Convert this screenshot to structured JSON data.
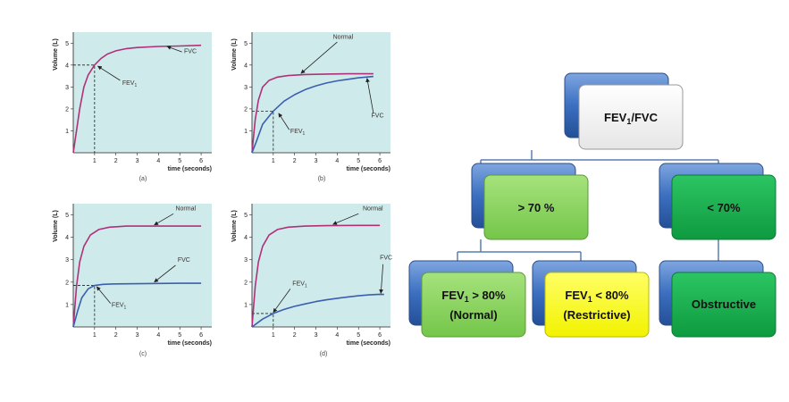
{
  "chart_data": [
    {
      "type": "line",
      "caption": "(a)",
      "ylabel": "Volume (L)",
      "xlabel": "time (seconds)",
      "xlim": [
        0,
        6.5
      ],
      "ylim": [
        0,
        5.5
      ],
      "xticks": [
        1,
        2,
        3,
        4,
        5,
        6
      ],
      "yticks": [
        1,
        2,
        3,
        4,
        5
      ],
      "series": [
        {
          "color": "#b0307a",
          "x": [
            0,
            0.15,
            0.3,
            0.5,
            0.7,
            1.0,
            1.3,
            1.6,
            2.0,
            2.5,
            3.0,
            4.0,
            5.0,
            6.0
          ],
          "y": [
            0,
            1.0,
            2.0,
            3.0,
            3.55,
            4.0,
            4.3,
            4.5,
            4.65,
            4.75,
            4.8,
            4.85,
            4.87,
            4.9
          ]
        }
      ],
      "annotations": [
        {
          "text": "FVC",
          "x": 5.2,
          "y": 4.55
        },
        {
          "text": "FEV",
          "sub": "1",
          "x": 2.3,
          "y": 3.1
        }
      ],
      "marker": {
        "x": 1.0,
        "y": 4.0
      }
    },
    {
      "type": "line",
      "caption": "(b)",
      "ylabel": "Volume (L)",
      "xlabel": "time (seconds)",
      "xlim": [
        0,
        6.5
      ],
      "ylim": [
        0,
        5.5
      ],
      "xticks": [
        1,
        2,
        3,
        4,
        5,
        6
      ],
      "yticks": [
        1,
        2,
        3,
        4,
        5
      ],
      "series": [
        {
          "color": "#b0307a",
          "x": [
            0,
            0.15,
            0.3,
            0.5,
            0.8,
            1.2,
            1.7,
            2.5,
            3.5,
            4.5,
            5.7
          ],
          "y": [
            0,
            1.5,
            2.4,
            3.0,
            3.3,
            3.45,
            3.52,
            3.57,
            3.59,
            3.6,
            3.6
          ]
        },
        {
          "color": "#3a5fb0",
          "x": [
            0,
            0.2,
            0.5,
            1.0,
            1.5,
            2.0,
            2.5,
            3.0,
            3.5,
            4.0,
            4.5,
            5.0,
            5.7
          ],
          "y": [
            0,
            0.5,
            1.3,
            1.9,
            2.35,
            2.65,
            2.88,
            3.05,
            3.18,
            3.28,
            3.35,
            3.42,
            3.48
          ]
        }
      ],
      "annotations": [
        {
          "text": "Normal",
          "x": 3.8,
          "y": 5.2
        },
        {
          "text": "FVC",
          "x": 5.6,
          "y": 1.6
        },
        {
          "text": "FEV",
          "sub": "1",
          "x": 1.8,
          "y": 0.9
        }
      ],
      "marker": {
        "x": 1.0,
        "y": 1.9
      }
    },
    {
      "type": "line",
      "caption": "(c)",
      "ylabel": "Volume (L)",
      "xlabel": "time (seconds)",
      "xlim": [
        0,
        6.5
      ],
      "ylim": [
        0,
        5.5
      ],
      "xticks": [
        1,
        2,
        3,
        4,
        5,
        6
      ],
      "yticks": [
        1,
        2,
        3,
        4,
        5
      ],
      "series": [
        {
          "color": "#b0307a",
          "x": [
            0,
            0.15,
            0.3,
            0.5,
            0.8,
            1.2,
            1.7,
            2.5,
            3.5,
            5.0,
            6.0
          ],
          "y": [
            0,
            1.8,
            2.9,
            3.6,
            4.1,
            4.35,
            4.45,
            4.5,
            4.5,
            4.5,
            4.5
          ]
        },
        {
          "color": "#3a5fb0",
          "x": [
            0,
            0.2,
            0.4,
            0.7,
            1.0,
            1.4,
            2.0,
            3.0,
            4.0,
            5.0,
            6.0
          ],
          "y": [
            0,
            0.7,
            1.3,
            1.7,
            1.85,
            1.9,
            1.92,
            1.93,
            1.94,
            1.95,
            1.95
          ]
        }
      ],
      "annotations": [
        {
          "text": "Normal",
          "x": 4.8,
          "y": 5.2
        },
        {
          "text": "FVC",
          "x": 4.9,
          "y": 2.9
        },
        {
          "text": "FEV",
          "sub": "1",
          "x": 1.8,
          "y": 0.9
        }
      ],
      "marker": {
        "x": 1.0,
        "y": 1.85
      }
    },
    {
      "type": "line",
      "caption": "(d)",
      "ylabel": "Volume (L)",
      "xlabel": "time (seconds)",
      "xlim": [
        0,
        6.5
      ],
      "ylim": [
        0,
        5.5
      ],
      "xticks": [
        1,
        2,
        3,
        4,
        5,
        6
      ],
      "yticks": [
        1,
        2,
        3,
        4,
        5
      ],
      "series": [
        {
          "color": "#b0307a",
          "x": [
            0,
            0.15,
            0.3,
            0.5,
            0.8,
            1.2,
            1.7,
            2.5,
            3.5,
            5.0,
            6.0
          ],
          "y": [
            0,
            1.8,
            2.9,
            3.6,
            4.1,
            4.35,
            4.45,
            4.5,
            4.52,
            4.53,
            4.53
          ]
        },
        {
          "color": "#3a5fb0",
          "x": [
            0,
            0.5,
            1.0,
            1.5,
            2.0,
            2.5,
            3.0,
            3.5,
            4.0,
            4.5,
            5.0,
            5.5,
            6.0,
            6.2
          ],
          "y": [
            0,
            0.35,
            0.6,
            0.78,
            0.92,
            1.03,
            1.13,
            1.21,
            1.28,
            1.34,
            1.39,
            1.43,
            1.46,
            1.45
          ]
        }
      ],
      "annotations": [
        {
          "text": "Normal",
          "x": 5.2,
          "y": 5.2
        },
        {
          "text": "FVC",
          "x": 6.0,
          "y": 3.0
        },
        {
          "text": "FEV",
          "sub": "1",
          "x": 1.9,
          "y": 1.85
        }
      ],
      "marker": {
        "x": 1.0,
        "y": 0.6
      }
    }
  ],
  "flowchart": {
    "root": {
      "main": "FEV",
      "sub": "1",
      "tail": "/FVC"
    },
    "left": {
      "text": "> 70 %"
    },
    "right": {
      "text": "< 70%"
    },
    "leaf1": {
      "main": "FEV",
      "sub": "1",
      "tail": " > 80%",
      "line2": "(Normal)"
    },
    "leaf2": {
      "main": "FEV",
      "sub": "1",
      "tail": " < 80%",
      "line2": "(Restrictive)"
    },
    "leaf3": {
      "text": "Obstructive"
    }
  },
  "colors": {
    "plot_bg": "#cfeaea",
    "shadow_box": "#3b6fc0",
    "root_fill": "#ffffff",
    "light_green": "#86d35a",
    "dark_green": "#13b04c",
    "yellow": "#ffff2a",
    "connector": "#5a7fb0"
  }
}
